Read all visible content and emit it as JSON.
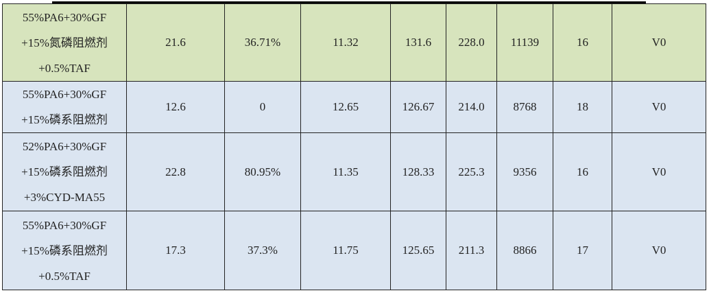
{
  "colors": {
    "highlight_row": "#d7e4bd",
    "normal_row": "#dbe5f1"
  },
  "rows": [
    {
      "formula": [
        "55%PA6+30%GF",
        "+15%氮磷阻燃剂",
        "+0.5%TAF"
      ],
      "values": [
        "21.6",
        "36.71%",
        "11.32",
        "131.6",
        "228.0",
        "11139",
        "16",
        "V0"
      ]
    },
    {
      "formula": [
        "55%PA6+30%GF",
        "+15%磷系阻燃剂"
      ],
      "values": [
        "12.6",
        "0",
        "12.65",
        "126.67",
        "214.0",
        "8768",
        "18",
        "V0"
      ]
    },
    {
      "formula": [
        "52%PA6+30%GF",
        "+15%磷系阻燃剂",
        "+3%CYD-MA55"
      ],
      "values": [
        "22.8",
        "80.95%",
        "11.35",
        "128.33",
        "225.3",
        "9356",
        "16",
        "V0"
      ]
    },
    {
      "formula": [
        "55%PA6+30%GF",
        "+15%磷系阻燃剂",
        "+0.5%TAF"
      ],
      "values": [
        "17.3",
        "37.3%",
        "11.75",
        "125.65",
        "211.3",
        "8866",
        "17",
        "V0"
      ]
    }
  ]
}
